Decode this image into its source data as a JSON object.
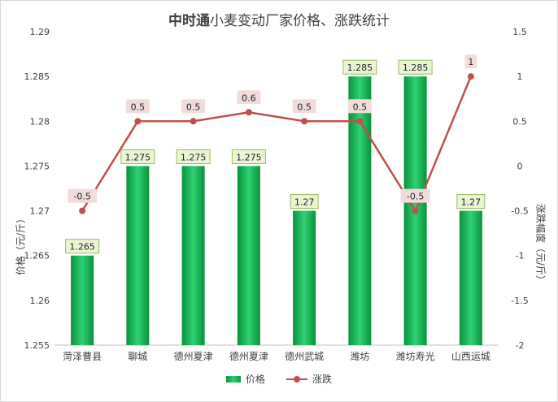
{
  "title_brand": "中时通",
  "title_rest": "小麦变动厂家价格、涨跌统计",
  "legend": {
    "price": "价格",
    "change": "涨跌"
  },
  "colors": {
    "bar": "#12a84a",
    "bar_label_bg": "#eaf5d3",
    "line": "#c0504d",
    "line_label_bg": "#f2dcdb",
    "grid": "#e0e0e0",
    "axis_text": "#404040"
  },
  "chart_data": {
    "type": "bar",
    "title": "中时通小麦变动厂家价格、涨跌统计",
    "categories": [
      "菏泽曹县",
      "聊城",
      "德州夏津",
      "德州夏津",
      "德州武城",
      "潍坊",
      "潍坊寿光",
      "山西运城"
    ],
    "series": [
      {
        "name": "价格",
        "type": "bar",
        "axis": "left",
        "values": [
          1.265,
          1.275,
          1.275,
          1.275,
          1.27,
          1.285,
          1.285,
          1.27
        ]
      },
      {
        "name": "涨跌",
        "type": "line",
        "axis": "right",
        "values": [
          -0.5,
          0.5,
          0.5,
          0.6,
          0.5,
          0.5,
          -0.5,
          1
        ]
      }
    ],
    "ylabel": "价格（元/斤）",
    "y2label": "涨跌幅度（元/斤）",
    "ylim": [
      1.255,
      1.29
    ],
    "y2lim": [
      -2,
      1.5
    ],
    "yticks": [
      "1.255",
      "1.26",
      "1.265",
      "1.27",
      "1.275",
      "1.28",
      "1.285",
      "1.29"
    ],
    "y2ticks": [
      "-2",
      "-1.5",
      "-1",
      "-0.5",
      "0",
      "0.5",
      "1",
      "1.5"
    ],
    "legend_position": "bottom",
    "grid": false
  }
}
